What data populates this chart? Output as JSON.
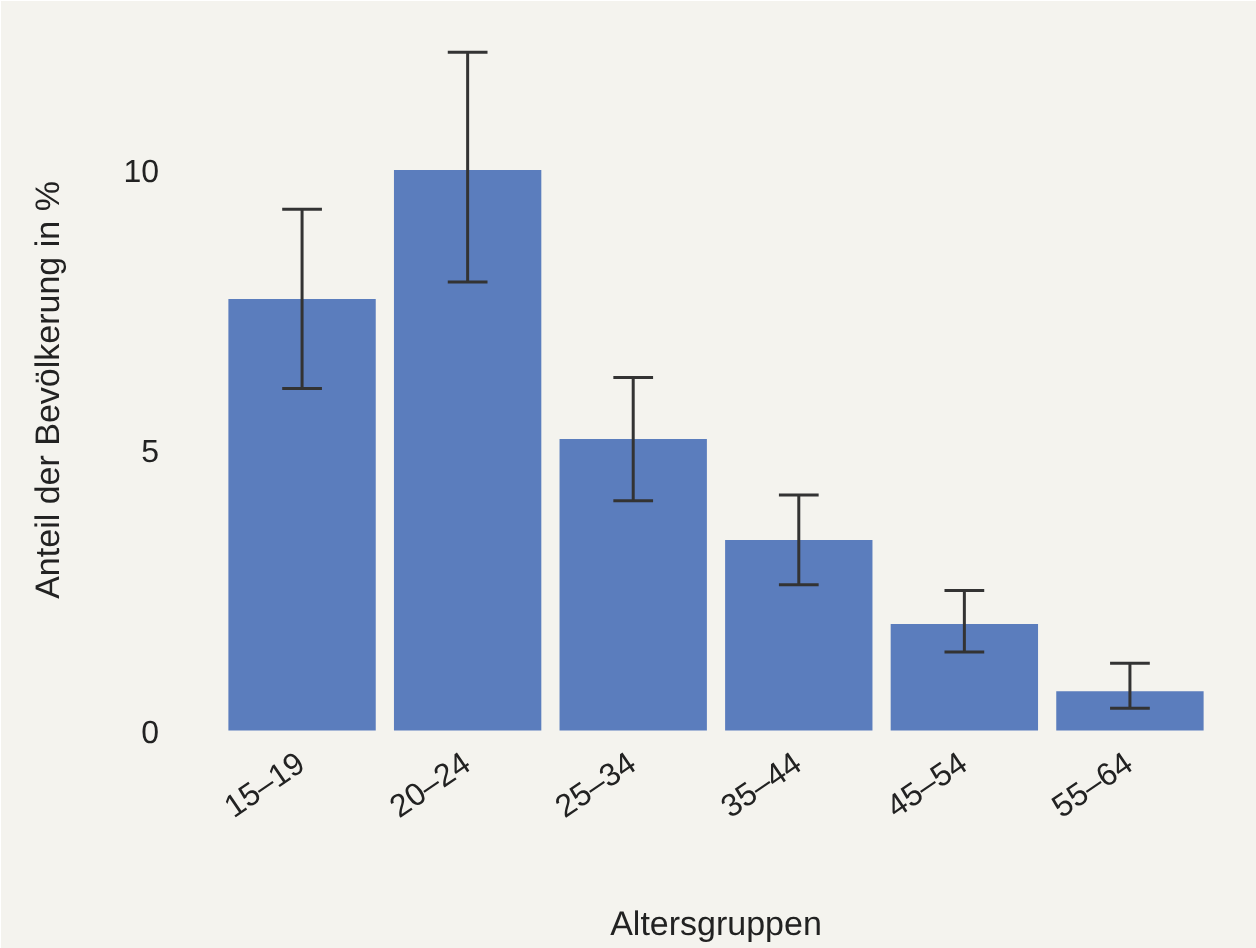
{
  "chart_data": {
    "type": "bar",
    "xlabel": "Altersgruppen",
    "ylabel": "Anteil der Bevölkerung in %",
    "categories": [
      "15–19",
      "20–24",
      "25–34",
      "35–44",
      "45–54",
      "55–64"
    ],
    "values": [
      7.7,
      10.0,
      5.2,
      3.4,
      1.9,
      0.7
    ],
    "errors": [
      [
        6.1,
        9.3
      ],
      [
        8.0,
        12.1
      ],
      [
        4.1,
        6.3
      ],
      [
        2.6,
        4.2
      ],
      [
        1.4,
        2.5
      ],
      [
        0.4,
        1.2
      ]
    ],
    "color": "#5b7dbd",
    "ylim": [
      -0.15,
      12.3
    ],
    "yticks": [
      0,
      5,
      10
    ],
    "grid": false
  }
}
